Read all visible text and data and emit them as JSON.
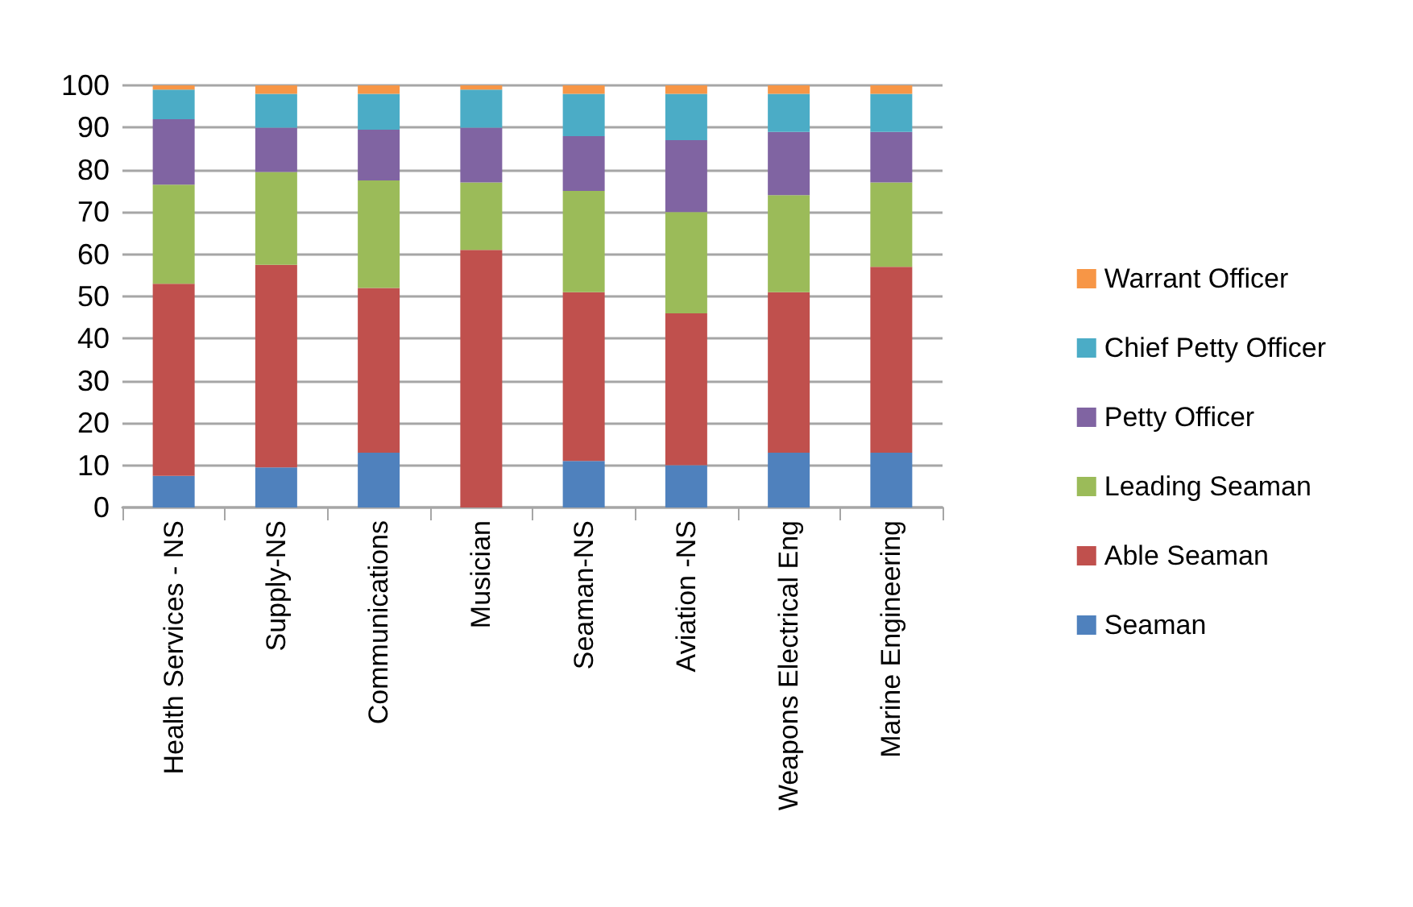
{
  "chart_data": {
    "type": "bar",
    "stacked": true,
    "categories": [
      "Health Services - NS",
      "Supply-NS",
      "Communications",
      "Musician",
      "Seaman-NS",
      "Aviation -NS",
      "Weapons Electrical Eng",
      "Marine Engineering"
    ],
    "series": [
      {
        "name": "Seaman",
        "color": "#4f81bd",
        "values": [
          7.5,
          9.5,
          13,
          0,
          11,
          10,
          13,
          13
        ]
      },
      {
        "name": "Able Seaman",
        "color": "#c0504d",
        "values": [
          45.5,
          48,
          39,
          61,
          40,
          36,
          38,
          44
        ]
      },
      {
        "name": "Leading Seaman",
        "color": "#9bbb59",
        "values": [
          23.5,
          22,
          25.5,
          16,
          24,
          24,
          23,
          20
        ]
      },
      {
        "name": "Petty Officer",
        "color": "#8064a2",
        "values": [
          15.5,
          10.5,
          12,
          13,
          13,
          17,
          15,
          12
        ]
      },
      {
        "name": "Chief Petty Officer",
        "color": "#4bacc6",
        "values": [
          7,
          8,
          8.5,
          9,
          10,
          11,
          9,
          9
        ]
      },
      {
        "name": "Warrant Officer",
        "color": "#f79646",
        "values": [
          1,
          2,
          2,
          1,
          2,
          2,
          2,
          2
        ]
      }
    ],
    "ylim": [
      0,
      100
    ],
    "yticks": [
      0,
      10,
      20,
      30,
      40,
      50,
      60,
      70,
      80,
      90,
      100
    ],
    "grid": "y",
    "legend": "right"
  }
}
